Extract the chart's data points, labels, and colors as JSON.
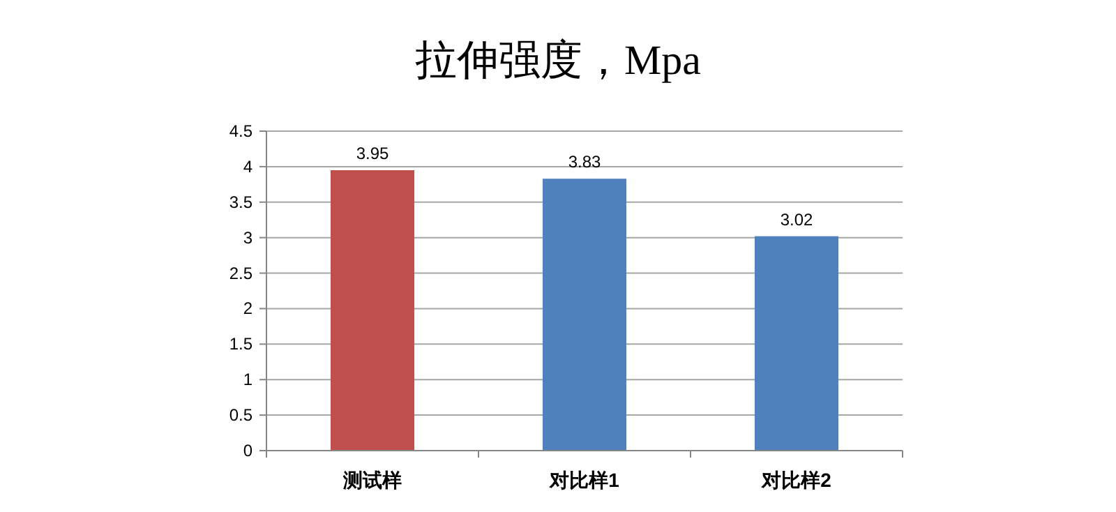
{
  "chart_data": {
    "type": "bar",
    "title": "拉伸强度，Mpa",
    "categories": [
      "测试样",
      "对比样1",
      "对比样2"
    ],
    "values": [
      3.95,
      3.83,
      3.02
    ],
    "colors": [
      "#c0504d",
      "#4f81bd",
      "#4f81bd"
    ],
    "ylim": [
      0,
      4.5
    ],
    "yticks": [
      0,
      0.5,
      1,
      1.5,
      2,
      2.5,
      3,
      3.5,
      4,
      4.5
    ],
    "data_labels": true,
    "grid": "y"
  }
}
